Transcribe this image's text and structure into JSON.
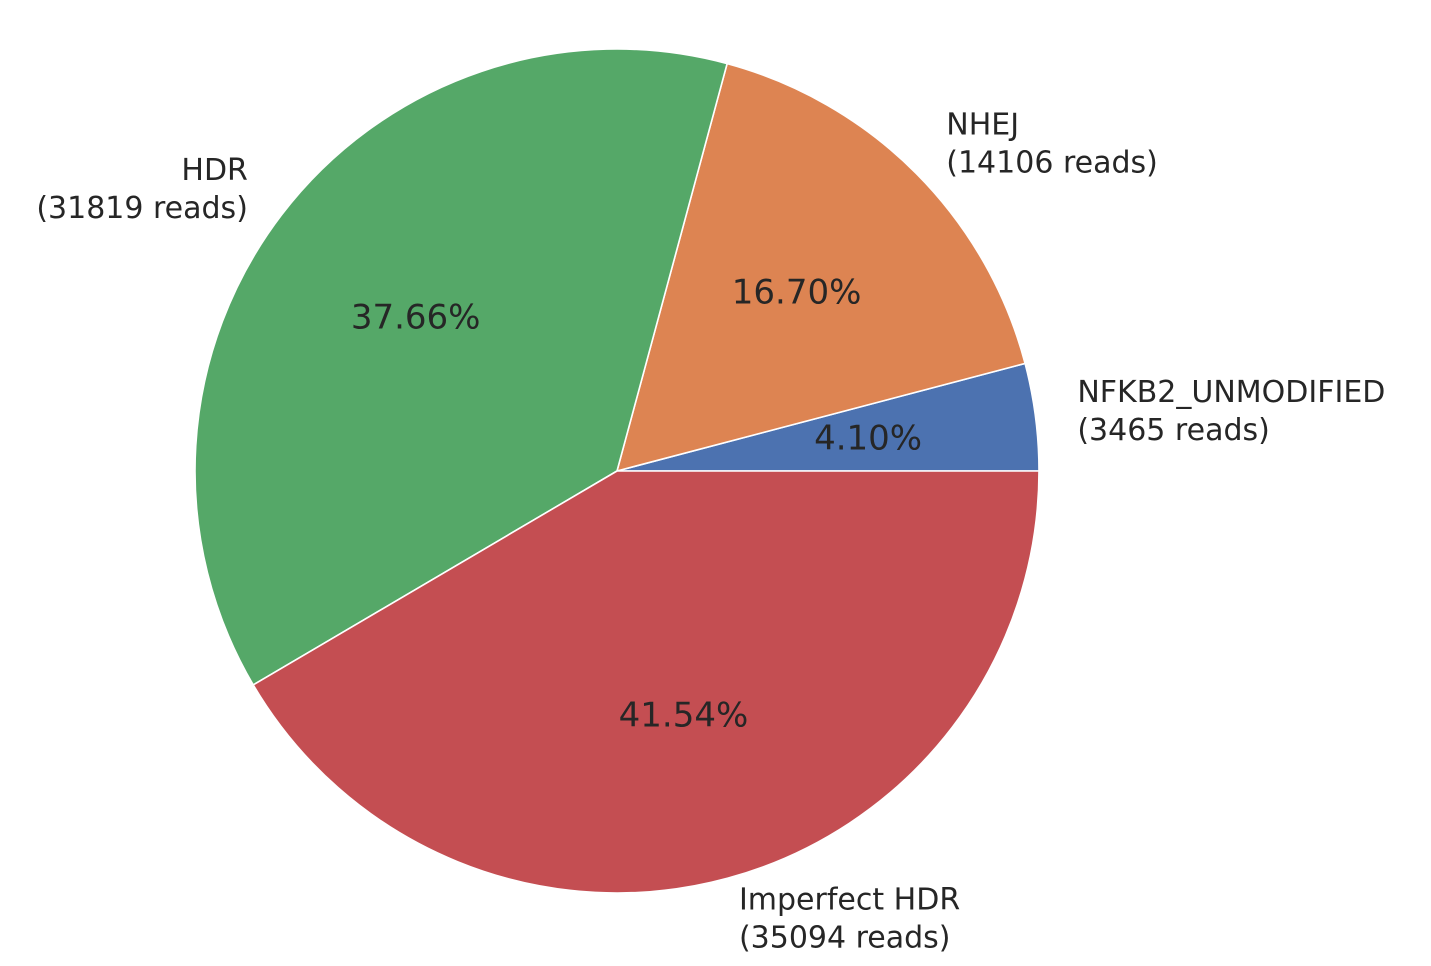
{
  "chart_data": {
    "type": "pie",
    "title": "",
    "start_angle_deg": 0,
    "direction": "counterclockwise",
    "slices": [
      {
        "label": "NFKB2_UNMODIFIED",
        "reads_label": "(3465 reads)",
        "reads": 3465,
        "percent": 4.1,
        "percent_label": "4.10%",
        "color": "#4c72b0"
      },
      {
        "label": "NHEJ",
        "reads_label": "(14106 reads)",
        "reads": 14106,
        "percent": 16.7,
        "percent_label": "16.70%",
        "color": "#dd8452"
      },
      {
        "label": "HDR",
        "reads_label": "(31819 reads)",
        "reads": 31819,
        "percent": 37.66,
        "percent_label": "37.66%",
        "color": "#55a868"
      },
      {
        "label": "Imperfect HDR",
        "reads_label": "(35094 reads)",
        "reads": 35094,
        "percent": 41.54,
        "percent_label": "41.54%",
        "color": "#c44e52"
      }
    ]
  }
}
